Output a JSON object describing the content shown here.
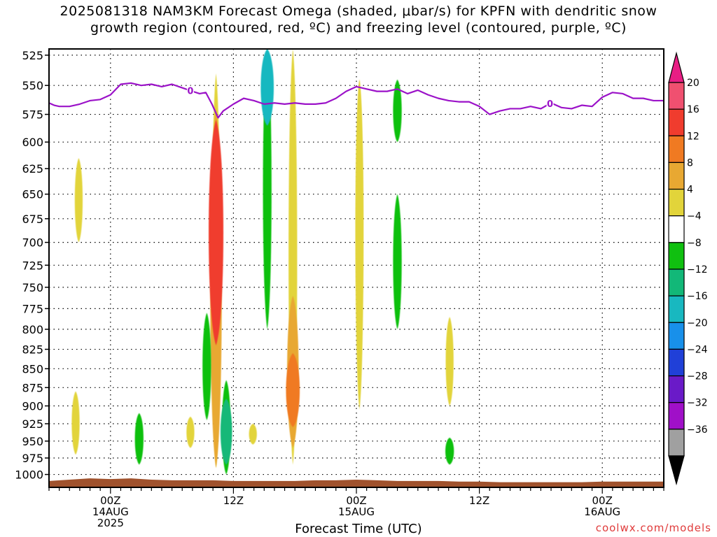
{
  "title": {
    "line1": "2025081318 NAM3KM Forecast Omega (shaded, μbar/s) for KPFN with dendritic snow",
    "line2": "growth region (contoured, red, ºC) and freezing level (contoured, purple, ºC)"
  },
  "xlabel": "Forecast Time (UTC)",
  "credit": "coolwx.com/models",
  "chart_data": {
    "type": "heatmap",
    "title": "2025081318 NAM3KM Forecast Omega (shaded, μbar/s) for KPFN with dendritic snow growth region (contoured, red, ºC) and freezing level (contoured, purple, ºC)",
    "xlabel": "Forecast Time (UTC)",
    "ylabel": "",
    "y_axis": {
      "ticks": [
        525,
        550,
        575,
        600,
        625,
        650,
        675,
        700,
        725,
        750,
        775,
        800,
        825,
        850,
        875,
        900,
        925,
        950,
        975,
        1000
      ],
      "labels": [
        "525",
        "550",
        "575",
        "600",
        "625",
        "650",
        "675",
        "700",
        "725",
        "750",
        "775",
        "800",
        "825",
        "850",
        "875",
        "900",
        "925",
        "950",
        "975",
        "1000"
      ],
      "ylim": [
        1020,
        520
      ],
      "scale": "log-pressure"
    },
    "x_axis": {
      "unit": "hours since 2025-08-13 18Z",
      "xlim": [
        0,
        60
      ],
      "ticks": [
        {
          "hour": 6,
          "lines": [
            "00Z",
            "14AUG",
            "2025"
          ]
        },
        {
          "hour": 18,
          "lines": [
            "12Z"
          ]
        },
        {
          "hour": 30,
          "lines": [
            "00Z",
            "15AUG"
          ]
        },
        {
          "hour": 42,
          "lines": [
            "12Z"
          ]
        },
        {
          "hour": 54,
          "lines": [
            "00Z",
            "16AUG"
          ]
        }
      ]
    },
    "grid": true,
    "colorbar": {
      "labels": [
        "20",
        "16",
        "12",
        "8",
        "4",
        "−4",
        "−8",
        "−12",
        "−16",
        "−20",
        "−24",
        "−28",
        "−32",
        "−36"
      ],
      "levels": [
        20,
        16,
        12,
        8,
        4,
        -4,
        -8,
        -12,
        -16,
        -20,
        -24,
        -28,
        -32,
        -36
      ],
      "colors": [
        "#f05070",
        "#f03c2e",
        "#f07a22",
        "#e8a832",
        "#e2d43a",
        "#ffffff",
        "#10c010",
        "#12b878",
        "#18b8c0",
        "#1890ea",
        "#2040d8",
        "#6a1ac8",
        "#a010c8",
        "#a0a0a0"
      ],
      "top_triangle": "#e81e84",
      "bottom_triangle": "#000000"
    },
    "omega_features": [
      {
        "hour": 2.9,
        "p_top": 615,
        "p_bottom": 700,
        "omega": 5
      },
      {
        "hour": 2.6,
        "p_top": 880,
        "p_bottom": 970,
        "omega": 5
      },
      {
        "hour": 8.8,
        "p_top": 910,
        "p_bottom": 985,
        "omega": -6
      },
      {
        "hour": 13.8,
        "p_top": 915,
        "p_bottom": 960,
        "omega": 5
      },
      {
        "hour": 16.3,
        "p_top": 540,
        "p_bottom": 990,
        "omega": 6
      },
      {
        "hour": 16.3,
        "p_top": 570,
        "p_bottom": 990,
        "omega": 10
      },
      {
        "hour": 16.3,
        "p_top": 580,
        "p_bottom": 820,
        "omega": 18
      },
      {
        "hour": 15.4,
        "p_top": 780,
        "p_bottom": 920,
        "omega": -6
      },
      {
        "hour": 17.3,
        "p_top": 865,
        "p_bottom": 1000,
        "omega": -6
      },
      {
        "hour": 17.3,
        "p_top": 890,
        "p_bottom": 985,
        "omega": -10
      },
      {
        "hour": 19.9,
        "p_top": 925,
        "p_bottom": 955,
        "omega": 5
      },
      {
        "hour": 21.3,
        "p_top": 520,
        "p_bottom": 800,
        "omega": -6
      },
      {
        "hour": 21.3,
        "p_top": 520,
        "p_bottom": 585,
        "omega": -12
      },
      {
        "hour": 23.8,
        "p_top": 520,
        "p_bottom": 985,
        "omega": 6
      },
      {
        "hour": 23.8,
        "p_top": 760,
        "p_bottom": 960,
        "omega": 10
      },
      {
        "hour": 23.8,
        "p_top": 830,
        "p_bottom": 930,
        "omega": 13
      },
      {
        "hour": 30.3,
        "p_top": 545,
        "p_bottom": 905,
        "omega": 5
      },
      {
        "hour": 30.3,
        "p_top": 545,
        "p_bottom": 845,
        "omega": 5
      },
      {
        "hour": 34.0,
        "p_top": 545,
        "p_bottom": 600,
        "omega": -6
      },
      {
        "hour": 34.0,
        "p_top": 650,
        "p_bottom": 800,
        "omega": -6
      },
      {
        "hour": 39.1,
        "p_top": 785,
        "p_bottom": 900,
        "omega": 5
      },
      {
        "hour": 39.1,
        "p_top": 945,
        "p_bottom": 985,
        "omega": -6
      }
    ],
    "freezing_level": {
      "label": "0",
      "hours": [
        0,
        0.5,
        1,
        2,
        3,
        4,
        5,
        6,
        7,
        8,
        9,
        10,
        11,
        12,
        13,
        14,
        14.7,
        15.3,
        15.9,
        16.5,
        17,
        18,
        19,
        20,
        21,
        22,
        23,
        24,
        25,
        26,
        27,
        28,
        29,
        30,
        31,
        32,
        33,
        34,
        35,
        36,
        37,
        38,
        39,
        40,
        41,
        42,
        43,
        44,
        45,
        46,
        47,
        48,
        49,
        50,
        51,
        52,
        53,
        54,
        55,
        56,
        57,
        58,
        59,
        60
      ],
      "pressure": [
        565,
        567,
        568,
        568,
        566,
        563,
        562,
        558,
        549,
        548,
        550,
        549,
        551,
        549,
        552,
        555,
        557,
        556,
        566,
        578,
        572,
        566,
        561,
        563,
        566,
        565,
        566,
        565,
        566,
        566,
        565,
        561,
        555,
        551,
        553,
        555,
        555,
        553,
        557,
        554,
        558,
        561,
        563,
        564,
        564,
        568,
        575,
        572,
        570,
        570,
        568,
        570,
        565,
        569,
        570,
        567,
        568,
        560,
        556,
        557,
        561,
        561,
        563,
        563
      ],
      "label_hours": [
        13.8,
        48.9
      ]
    },
    "terrain": {
      "color": "#a0522d",
      "hours": [
        0,
        2,
        4,
        6,
        8,
        10,
        12,
        14,
        16,
        18,
        20,
        22,
        24,
        26,
        28,
        30,
        32,
        34,
        36,
        38,
        40,
        42,
        44,
        46,
        48,
        50,
        52,
        54,
        56,
        58,
        60
      ],
      "surface_pressure": [
        1010,
        1008,
        1006,
        1007,
        1006,
        1008,
        1009,
        1009,
        1009,
        1010,
        1010,
        1010,
        1010,
        1009,
        1009,
        1008,
        1009,
        1010,
        1010,
        1010,
        1011,
        1011,
        1012,
        1012,
        1012,
        1012,
        1012,
        1011,
        1011,
        1011,
        1011
      ]
    }
  }
}
